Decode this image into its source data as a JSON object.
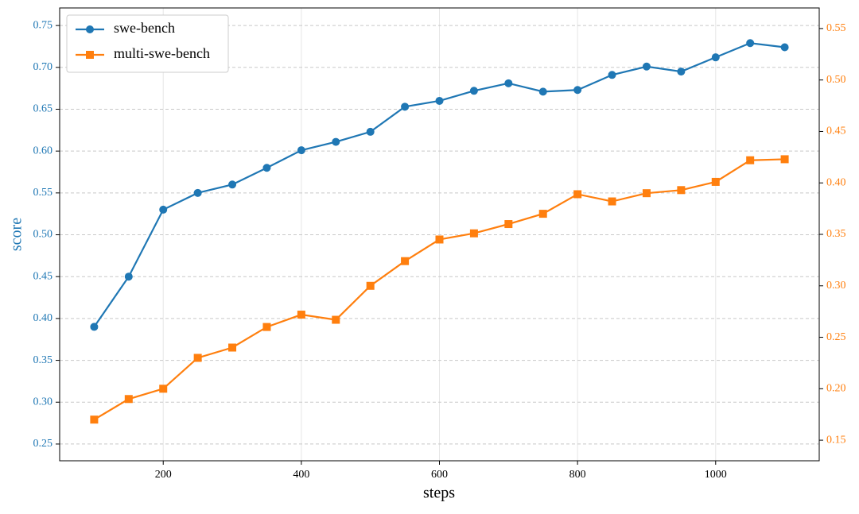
{
  "chart_data": {
    "type": "line",
    "x_label": "steps",
    "y_label": "score",
    "x": [
      100,
      150,
      200,
      250,
      300,
      350,
      400,
      450,
      500,
      550,
      600,
      650,
      700,
      750,
      800,
      850,
      900,
      950,
      1000,
      1050,
      1100
    ],
    "series": [
      {
        "name": "swe-bench",
        "color": "#1f77b4",
        "marker": "circle",
        "values": [
          0.39,
          0.45,
          0.53,
          0.55,
          0.56,
          0.58,
          0.601,
          0.611,
          0.623,
          0.653,
          0.66,
          0.672,
          0.681,
          0.671,
          0.673,
          0.691,
          0.701,
          0.695,
          0.712,
          0.729,
          0.724
        ]
      },
      {
        "name": "multi-swe-bench",
        "color": "#ff7f0e",
        "marker": "square",
        "axis": "y2",
        "values": [
          0.17,
          0.19,
          0.2,
          0.23,
          0.24,
          0.26,
          0.272,
          0.267,
          0.3,
          0.324,
          0.345,
          0.351,
          0.36,
          0.37,
          0.389,
          0.382,
          0.39,
          0.393,
          0.401,
          0.422,
          0.423
        ]
      }
    ],
    "xlim": [
      50,
      1150
    ],
    "xticks": [
      200,
      400,
      600,
      800,
      1000
    ],
    "ylim": [
      0.23,
      0.771
    ],
    "yticks": [
      0.25,
      {
        "value": 0.3,
        "label": "0.30"
      },
      0.35,
      {
        "value": 0.4,
        "label": "0.40"
      },
      0.45,
      {
        "value": 0.5,
        "label": "0.50"
      },
      0.55,
      {
        "value": 0.6,
        "label": "0.60"
      },
      0.65,
      {
        "value": 0.7,
        "label": "0.70"
      },
      0.75
    ],
    "y2lim": [
      0.13,
      0.57
    ],
    "y2ticks": [
      0.15,
      {
        "value": 0.2,
        "label": "0.20"
      },
      0.25,
      {
        "value": 0.3,
        "label": "0.30"
      },
      0.35,
      {
        "value": 0.4,
        "label": "0.40"
      },
      0.45,
      {
        "value": 0.5,
        "label": "0.50"
      },
      0.55
    ],
    "grid": true,
    "legend": "upper left"
  }
}
